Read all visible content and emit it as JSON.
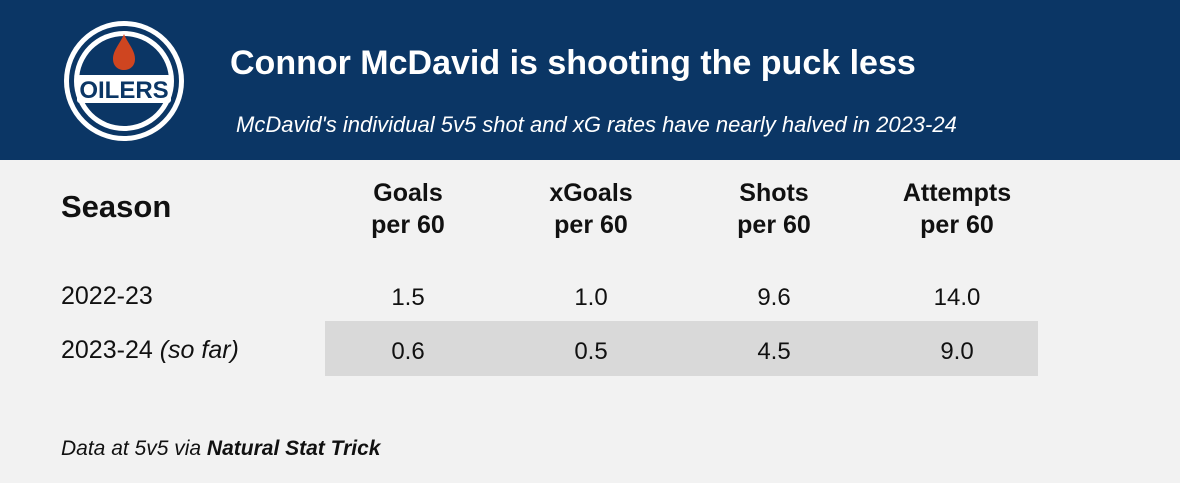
{
  "header": {
    "title": "Connor McDavid is shooting the puck less",
    "subtitle": "McDavid's individual 5v5 shot and xG rates have nearly halved in 2023-24",
    "logo_text": "OILERS",
    "colors": {
      "navy": "#0b3665",
      "orange": "#cf4520",
      "row_highlight": "#d9d9d9"
    }
  },
  "chart_data": {
    "type": "table",
    "columns": [
      {
        "line1": "Season",
        "line2": ""
      },
      {
        "line1": "Goals",
        "line2": "per 60"
      },
      {
        "line1": "xGoals",
        "line2": "per 60"
      },
      {
        "line1": "Shots",
        "line2": "per 60"
      },
      {
        "line1": "Attempts",
        "line2": "per 60"
      }
    ],
    "rows": [
      {
        "season": "2022-23",
        "season_note": "",
        "values": [
          "1.5",
          "1.0",
          "9.6",
          "14.0"
        ]
      },
      {
        "season": "2023-24",
        "season_note": "(so far)",
        "values": [
          "0.6",
          "0.5",
          "4.5",
          "9.0"
        ]
      }
    ]
  },
  "footnote": {
    "prefix": "Data at 5v5 via ",
    "source": "Natural Stat Trick"
  }
}
